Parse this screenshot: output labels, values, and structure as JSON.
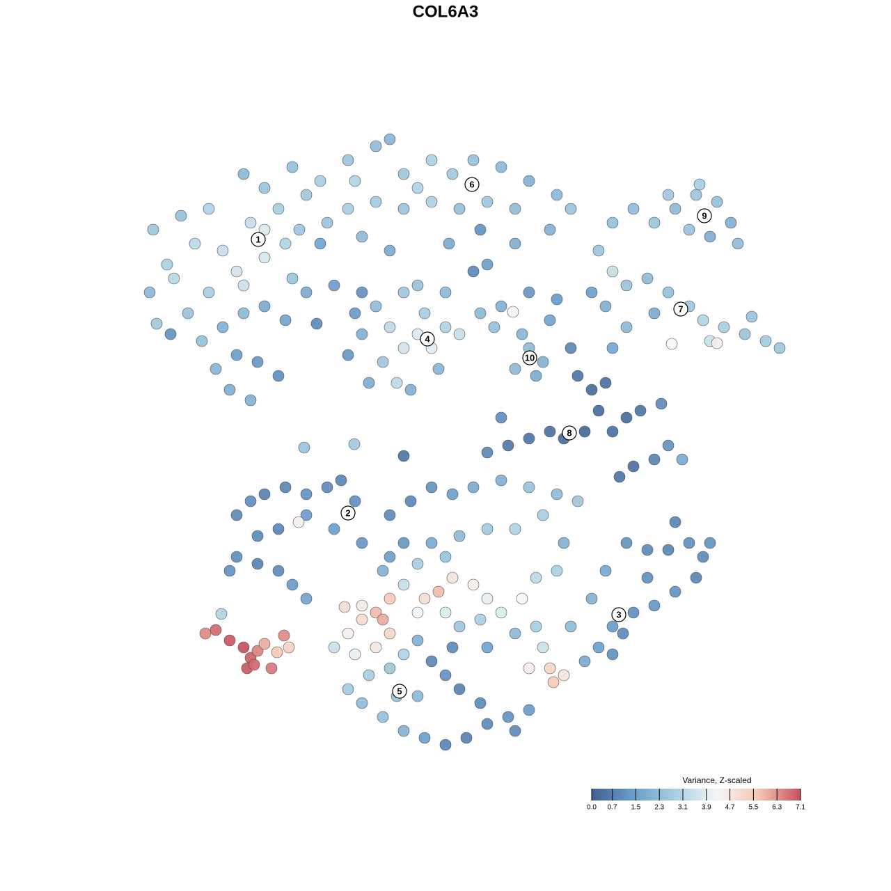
{
  "chart_data": {
    "type": "scatter",
    "title": "COL6A3",
    "xlim": [
      0,
      1280
    ],
    "ylim": [
      1280,
      0
    ],
    "x": [
      220,
      240,
      215,
      260,
      280,
      300,
      320,
      340,
      360,
      380,
      350,
      400,
      410,
      420,
      300,
      270,
      290,
      320,
      350,
      380,
      410,
      340,
      370,
      400,
      330,
      360,
      310,
      245,
      440,
      430,
      455,
      225,
      250,
      380,
      350,
      380,
      420,
      460,
      500,
      540,
      560,
      580,
      620,
      650,
      680,
      720,
      760,
      800,
      820,
      790,
      740,
      700,
      660,
      620,
      580,
      540,
      500,
      470,
      440,
      510,
      600,
      690,
      680,
      700,
      560,
      520,
      460,
      480,
      645,
      740,
      880,
      910,
      940,
      970,
      1000,
      1030,
      1050,
      1060,
      1020,
      990,
      960,
      1005,
      860,
      880,
      900,
      930,
      960,
      990,
      1010,
      1040,
      1070,
      1100,
      1120,
      1080,
      1020,
      965,
      1030,
      940,
      900,
      880,
      850,
      870,
      510,
      520,
      540,
      560,
      580,
      600,
      620,
      640,
      610,
      580,
      600,
      550,
      570,
      530,
      500,
      590,
      630,
      660,
      640,
      520,
      690,
      720,
      737,
      750,
      760,
      780,
      740,
      770,
      790,
      800,
      760,
      710,
      820,
      830,
      850,
      870,
      860,
      840,
      810,
      790,
      760,
      730,
      700,
      880,
      900,
      920,
      950,
      960,
      940,
      910,
      890,
      980,
      720,
      580,
      340,
      360,
      380,
      410,
      440,
      470,
      490,
      510,
      480,
      440,
      429,
      400,
      370,
      340,
      370,
      400,
      420,
      440,
      330,
      520,
      900,
      930,
      960,
      990,
      1010,
      1000,
      970,
      940,
      910,
      880,
      860,
      880,
      840,
      820,
      850,
      870,
      930,
      970,
      1020,
      895,
      560,
      590,
      620,
      650,
      680,
      720,
      760,
      800,
      830,
      780,
      740,
      700,
      660,
      620,
      580,
      550,
      580,
      610,
      630,
      650,
      680,
      700,
      720,
      750,
      770,
      800,
      810,
      560,
      540,
      520,
      500,
      480,
      510,
      540,
      560,
      520,
      495,
      550,
      600,
      640,
      690,
      660,
      600,
      580,
      560,
      530,
      500,
      520,
      550,
      580,
      610,
      640,
      670,
      700,
      730,
      690,
      660,
      640,
      620,
      650,
      600,
      570,
      760,
      790,
      810,
      795,
      780,
      770,
      740,
      700,
      760,
      740,
      600,
      640,
      560,
      437,
      509,
      295,
      310,
      330,
      350,
      360,
      370,
      380,
      355,
      365,
      390,
      398,
      408,
      415,
      318
    ],
    "y": [
      330,
      380,
      420,
      310,
      350,
      300,
      360,
      390,
      320,
      370,
      410,
      300,
      350,
      400,
      420,
      450,
      490,
      470,
      450,
      440,
      460,
      510,
      520,
      540,
      560,
      575,
      530,
      480,
      420,
      330,
      465,
      465,
      400,
      330,
      250,
      270,
      240,
      260,
      230,
      210,
      200,
      250,
      230,
      250,
      230,
      240,
      260,
      280,
      300,
      330,
      300,
      290,
      300,
      290,
      300,
      290,
      300,
      320,
      280,
      260,
      270,
      330,
      390,
      380,
      360,
      340,
      350,
      410,
      350,
      350,
      320,
      300,
      320,
      300,
      280,
      290,
      320,
      350,
      340,
      330,
      280,
      265,
      360,
      390,
      410,
      400,
      420,
      440,
      460,
      470,
      480,
      490,
      500,
      455,
      490,
      494,
      493,
      450,
      470,
      500,
      420,
      440,
      450,
      480,
      440,
      470,
      500,
      480,
      500,
      470,
      450,
      420,
      410,
      520,
      550,
      550,
      510,
      560,
      530,
      480,
      420,
      420,
      450,
      440,
      448,
      480,
      500,
      520,
      530,
      540,
      460,
      430,
      420,
      470,
      500,
      540,
      560,
      550,
      590,
      620,
      630,
      620,
      630,
      640,
      650,
      620,
      600,
      590,
      580,
      640,
      660,
      670,
      685,
      660,
      600,
      655,
      740,
      720,
      710,
      700,
      710,
      700,
      690,
      720,
      760,
      740,
      750,
      760,
      770,
      800,
      810,
      820,
      840,
      860,
      820,
      780,
      780,
      790,
      790,
      780,
      800,
      830,
      850,
      870,
      880,
      900,
      930,
      940,
      950,
      900,
      860,
      820,
      830,
      750,
      780,
      910,
      740,
      720,
      700,
      710,
      700,
      690,
      700,
      710,
      720,
      740,
      760,
      760,
      770,
      780,
      780,
      820,
      840,
      860,
      850,
      830,
      840,
      860,
      880,
      860,
      830,
      820,
      780,
      860,
      880,
      890,
      910,
      930,
      940,
      930,
      910,
      870,
      872,
      890,
      880,
      880,
      890,
      900,
      920,
      940,
      960,
      970,
      990,
      1010,
      1030,
      1050,
      1060,
      1070,
      1060,
      1040,
      1030,
      1010,
      990,
      970,
      950,
      930,
      1000,
      1000,
      960,
      960,
      970,
      980,
      930,
      900,
      910,
      930,
      1020,
      1050,
      810,
      800,
      800,
      643,
      638,
      910,
      905,
      920,
      930,
      945,
      935,
      925,
      960,
      955,
      960,
      937,
      913,
      930,
      882
    ],
    "values": [
      2.6,
      2.9,
      2.2,
      2.4,
      3.2,
      3.0,
      3.4,
      3.6,
      3.3,
      3.7,
      3.5,
      2.8,
      3.0,
      2.5,
      2.8,
      2.5,
      2.4,
      2.0,
      2.2,
      1.8,
      1.6,
      1.4,
      1.3,
      1.1,
      1.9,
      2.0,
      2.1,
      1.2,
      1.8,
      2.6,
      1.0,
      2.7,
      3.1,
      3.8,
      2.2,
      2.5,
      2.4,
      2.8,
      2.5,
      2.3,
      2.1,
      2.6,
      2.9,
      2.7,
      2.4,
      2.2,
      2.0,
      2.2,
      2.5,
      2.0,
      2.3,
      2.6,
      2.4,
      2.9,
      2.5,
      2.7,
      2.8,
      2.5,
      2.7,
      3.0,
      3.0,
      1.2,
      1.0,
      1.5,
      1.8,
      2.2,
      1.6,
      1.4,
      1.8,
      1.9,
      2.4,
      2.3,
      2.5,
      2.2,
      2.6,
      2.4,
      2.0,
      2.3,
      1.9,
      2.5,
      2.7,
      2.8,
      2.6,
      3.4,
      2.5,
      2.3,
      2.4,
      2.6,
      3.0,
      2.8,
      2.5,
      2.7,
      2.6,
      2.5,
      3.5,
      4.3,
      4.5,
      1.8,
      2.2,
      1.7,
      1.5,
      2.0,
      1.4,
      2.0,
      2.3,
      3.2,
      3.6,
      3.8,
      3.9,
      3.0,
      2.8,
      2.6,
      2.5,
      2.6,
      3.2,
      1.9,
      1.3,
      2.0,
      2.1,
      3.4,
      2.2,
      1.2,
      2.2,
      2.0,
      4.2,
      2.1,
      2.3,
      2.0,
      2.2,
      1.8,
      1.6,
      1.4,
      1.3,
      2.4,
      0.9,
      0.5,
      0.3,
      0.4,
      0.3,
      0.2,
      0.3,
      0.4,
      0.5,
      0.6,
      0.9,
      0.4,
      0.3,
      0.5,
      1.0,
      1.2,
      0.8,
      0.4,
      0.5,
      1.8,
      1.1,
      0.5,
      1.0,
      1.1,
      0.8,
      0.9,
      1.2,
      1.0,
      0.9,
      1.1,
      1.5,
      1.4,
      4.5,
      0.9,
      1.0,
      1.1,
      0.8,
      1.0,
      1.4,
      1.6,
      1.2,
      1.3,
      1.2,
      1.0,
      0.9,
      1.1,
      1.0,
      0.9,
      1.2,
      1.3,
      1.1,
      1.4,
      1.5,
      1.2,
      1.8,
      2.3,
      2.0,
      1.7,
      1.1,
      0.9,
      1.2,
      1.0,
      1.0,
      0.9,
      1.2,
      1.5,
      1.8,
      2.0,
      2.5,
      2.3,
      2.6,
      2.8,
      3.0,
      2.7,
      2.2,
      1.8,
      1.3,
      2.0,
      3.4,
      5.0,
      5.8,
      4.8,
      4.5,
      4.0,
      3.8,
      4.3,
      3.2,
      2.9,
      2.0,
      5.5,
      5.8,
      5.0,
      4.5,
      3.5,
      4.0,
      4.7,
      5.2,
      4.6,
      5.0,
      6.0,
      4.2,
      3.8,
      2.9,
      2.6,
      2.0,
      3.0,
      2.6,
      2.8,
      2.7,
      2.3,
      2.4,
      2.0,
      1.5,
      0.9,
      0.8,
      1.0,
      1.2,
      1.0,
      0.8,
      1.2,
      0.9,
      1.0,
      2.2,
      2.5,
      4.5,
      5.2,
      4.8,
      5.5,
      3.5,
      2.8,
      2.2,
      1.6,
      1.4,
      1.0,
      2.8,
      2.5,
      1.5,
      2.5,
      2.7,
      6.4,
      6.8,
      7.0,
      7.1,
      6.9,
      6.5,
      6.0,
      7.0,
      6.8,
      6.6,
      5.6,
      6.4,
      5.3,
      3.0
    ],
    "annotations": [
      {
        "text": "1",
        "x": 371,
        "y": 344
      },
      {
        "text": "2",
        "x": 500,
        "y": 737
      },
      {
        "text": "3",
        "x": 889,
        "y": 883
      },
      {
        "text": "4",
        "x": 614,
        "y": 487
      },
      {
        "text": "5",
        "x": 574,
        "y": 993
      },
      {
        "text": "6",
        "x": 678,
        "y": 265
      },
      {
        "text": "7",
        "x": 978,
        "y": 444
      },
      {
        "text": "8",
        "x": 818,
        "y": 622
      },
      {
        "text": "9",
        "x": 1012,
        "y": 310
      },
      {
        "text": "10",
        "x": 761,
        "y": 514
      }
    ],
    "colorbar": {
      "title": "Variance, Z-scaled",
      "clim": [
        0,
        7.1
      ],
      "ticks": [
        {
          "value": 0,
          "label": "0.0"
        },
        0.7,
        1.5,
        2.3,
        3.1,
        3.9,
        4.7,
        5.5,
        6.3,
        7.1
      ],
      "colors": [
        "#3f6190",
        "#6a9dcb",
        "#a8cfe2",
        "#f4f6f7",
        "#f4c6b1",
        "#c8505e"
      ]
    }
  }
}
